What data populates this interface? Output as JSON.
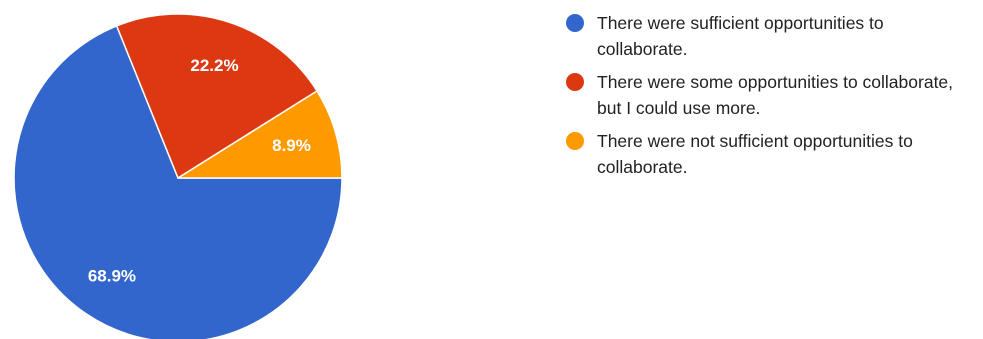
{
  "chart_data": {
    "type": "pie",
    "title": "",
    "slices": [
      {
        "label": "There were sufficient opportunities to collaborate.",
        "value": 68.9,
        "display": "68.9%",
        "color": "#3366cc"
      },
      {
        "label": "There were some opportunities to collaborate, but I could use more.",
        "value": 22.2,
        "display": "22.2%",
        "color": "#dc3912"
      },
      {
        "label": "There were not sufficient opportunities to collaborate.",
        "value": 8.9,
        "display": "8.9%",
        "color": "#ff9900"
      }
    ],
    "legend_position": "right"
  }
}
